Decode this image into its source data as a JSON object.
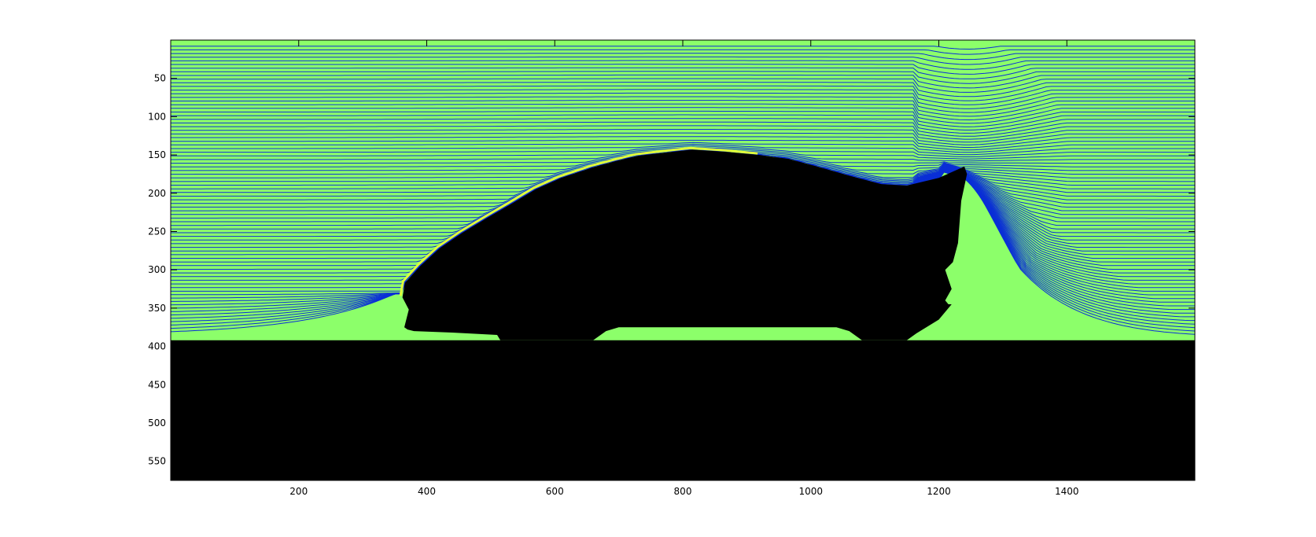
{
  "chart_data": {
    "type": "contour",
    "title": "",
    "xlabel": "",
    "ylabel": "",
    "xlim": [
      0,
      1600
    ],
    "ylim": [
      575,
      0
    ],
    "y_axis_reversed": true,
    "x_ticks": [
      200,
      400,
      600,
      800,
      1000,
      1200,
      1400
    ],
    "y_ticks": [
      50,
      100,
      150,
      200,
      250,
      300,
      350,
      400,
      450,
      500,
      550
    ],
    "grid": false,
    "legend": "none",
    "description_values": {
      "streamline_count": 80,
      "road_top_y": 392,
      "car_roof_peak": [
        815,
        143
      ],
      "car_front_x": 352,
      "car_rear_x": 1240,
      "wake_vortex": [
        1245,
        160
      ]
    },
    "car_profile": [
      [
        365,
        375
      ],
      [
        372,
        352
      ],
      [
        362,
        336
      ],
      [
        366,
        317
      ],
      [
        390,
        295
      ],
      [
        420,
        272
      ],
      [
        455,
        252
      ],
      [
        495,
        232
      ],
      [
        530,
        215
      ],
      [
        570,
        195
      ],
      [
        610,
        180
      ],
      [
        660,
        166
      ],
      [
        700,
        157
      ],
      [
        730,
        151
      ],
      [
        770,
        147
      ],
      [
        815,
        143
      ],
      [
        870,
        146
      ],
      [
        920,
        150
      ],
      [
        965,
        155
      ],
      [
        1010,
        165
      ],
      [
        1060,
        177
      ],
      [
        1110,
        188
      ],
      [
        1150,
        190
      ],
      [
        1200,
        180
      ],
      [
        1240,
        165
      ],
      [
        1244,
        175
      ],
      [
        1235,
        210
      ],
      [
        1230,
        265
      ],
      [
        1222,
        290
      ],
      [
        1210,
        300
      ],
      [
        1220,
        325
      ],
      [
        1210,
        340
      ],
      [
        1215,
        345
      ],
      [
        1220,
        345
      ],
      [
        1200,
        365
      ],
      [
        1165,
        383
      ],
      [
        1150,
        392
      ],
      [
        1080,
        392
      ],
      [
        1060,
        380
      ],
      [
        1040,
        375
      ],
      [
        700,
        375
      ],
      [
        680,
        380
      ],
      [
        660,
        392
      ],
      [
        515,
        392
      ],
      [
        510,
        385
      ],
      [
        440,
        382
      ],
      [
        380,
        380
      ],
      [
        370,
        378
      ]
    ],
    "colors": {
      "background": "#8cff6a",
      "streamline": "#0a2fd6",
      "obstacle": "#000000",
      "near_wall": "#e0ff3a"
    }
  }
}
